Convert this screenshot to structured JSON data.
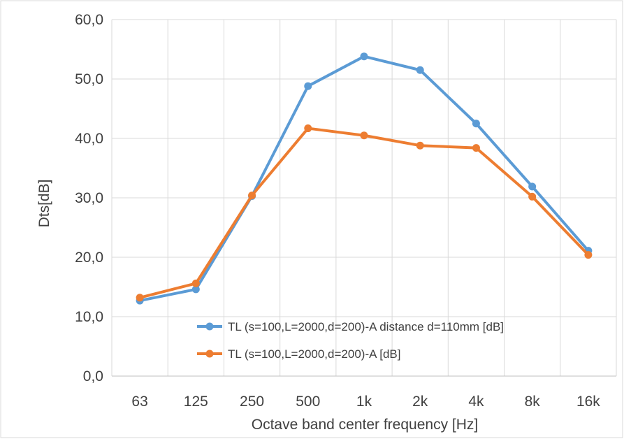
{
  "chart_data": {
    "type": "line",
    "title": "",
    "xlabel": "Octave band center frequency [Hz]",
    "ylabel": "Dts[dB]",
    "categories": [
      "63",
      "125",
      "250",
      "500",
      "1k",
      "2k",
      "4k",
      "8k",
      "16k"
    ],
    "ylim": [
      0,
      60
    ],
    "yticks": [
      0,
      10,
      20,
      30,
      40,
      50,
      60
    ],
    "ytick_labels": [
      "0,0",
      "10,0",
      "20,0",
      "30,0",
      "40,0",
      "50,0",
      "60,0"
    ],
    "grid": "vertical and horizontal",
    "legend_position": "lower-right inside plot",
    "series": [
      {
        "name": "TL (s=100,L=2000,d=200)-A distance d=110mm [dB]",
        "color": "#5B9BD5",
        "values": [
          12.7,
          14.6,
          30.3,
          48.8,
          53.8,
          51.5,
          42.5,
          31.9,
          21.1
        ]
      },
      {
        "name": "TL (s=100,L=2000,d=200)-A [dB]",
        "color": "#ED7D31",
        "values": [
          13.2,
          15.6,
          30.4,
          41.7,
          40.5,
          38.8,
          38.4,
          30.2,
          20.4
        ]
      }
    ]
  }
}
